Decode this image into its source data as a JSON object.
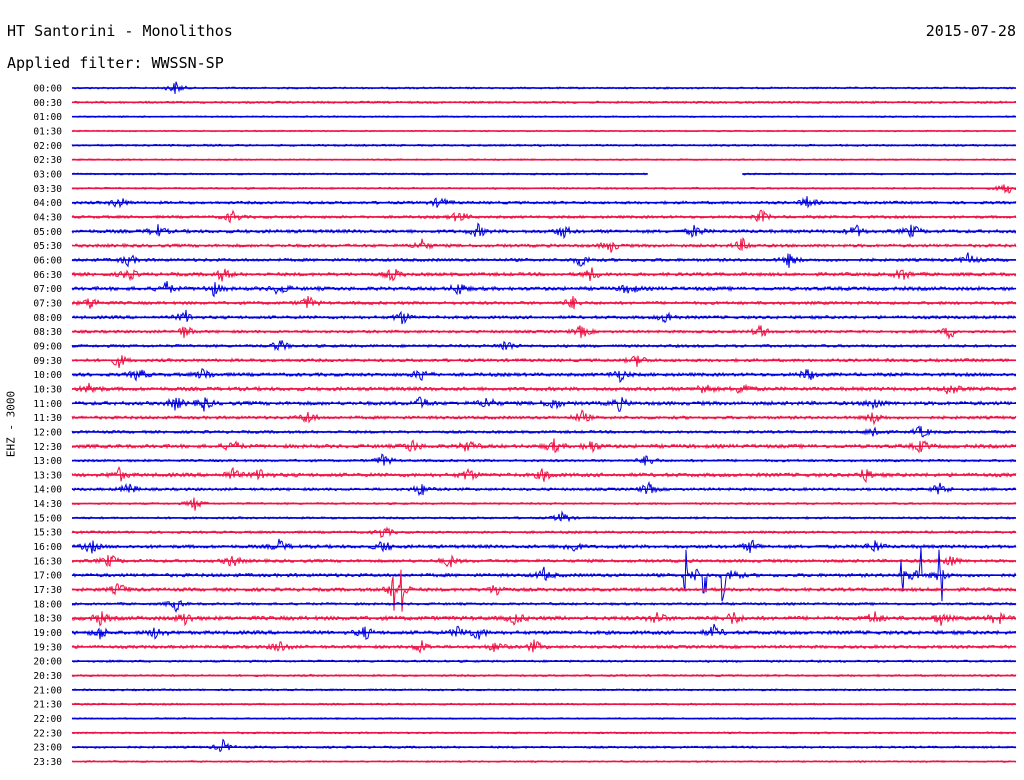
{
  "header": {
    "station": "HT Santorini - Monolithos",
    "filter": "Applied filter: WWSSN-SP",
    "date": "2015-07-28",
    "channel": "EHZ - 3000"
  },
  "colors": {
    "odd_trace": "#0000dd",
    "even_trace": "#ee1144"
  },
  "chart_data": {
    "type": "seismogram-helicorder",
    "title": "HT Santorini - Monolithos",
    "subtitle": "Applied filter: WWSSN-SP",
    "date": "2015-07-28",
    "ylabel": "EHZ - 3000",
    "row_minutes": 30,
    "rows": [
      {
        "time": "00:00",
        "color": "#0000dd",
        "activity": 0.1,
        "events": [
          0.11
        ]
      },
      {
        "time": "00:30",
        "color": "#ee1144",
        "activity": 0.15,
        "events": []
      },
      {
        "time": "01:00",
        "color": "#0000dd",
        "activity": 0.05,
        "events": []
      },
      {
        "time": "01:30",
        "color": "#ee1144",
        "activity": 0.03,
        "events": []
      },
      {
        "time": "02:00",
        "color": "#0000dd",
        "activity": 0.12,
        "events": []
      },
      {
        "time": "02:30",
        "color": "#ee1144",
        "activity": 0.05,
        "events": []
      },
      {
        "time": "03:00",
        "color": "#0000dd",
        "activity": 0.08,
        "events": [],
        "gap": [
          0.61,
          0.71
        ]
      },
      {
        "time": "03:30",
        "color": "#ee1144",
        "activity": 0.1,
        "events": [
          0.99
        ]
      },
      {
        "time": "04:00",
        "color": "#0000dd",
        "activity": 0.25,
        "events": [
          0.05,
          0.39,
          0.78
        ]
      },
      {
        "time": "04:30",
        "color": "#ee1144",
        "activity": 0.25,
        "events": [
          0.17,
          0.41,
          0.73
        ]
      },
      {
        "time": "05:00",
        "color": "#0000dd",
        "activity": 0.35,
        "events": [
          0.09,
          0.43,
          0.52,
          0.66,
          0.83,
          0.89
        ]
      },
      {
        "time": "05:30",
        "color": "#ee1144",
        "activity": 0.3,
        "events": [
          0.37,
          0.57,
          0.71
        ]
      },
      {
        "time": "06:00",
        "color": "#0000dd",
        "activity": 0.3,
        "events": [
          0.06,
          0.54,
          0.76,
          0.95
        ]
      },
      {
        "time": "06:30",
        "color": "#ee1144",
        "activity": 0.35,
        "events": [
          0.06,
          0.16,
          0.34,
          0.55,
          0.88
        ]
      },
      {
        "time": "07:00",
        "color": "#0000dd",
        "activity": 0.4,
        "events": [
          0.1,
          0.15,
          0.22,
          0.41,
          0.59
        ]
      },
      {
        "time": "07:30",
        "color": "#ee1144",
        "activity": 0.3,
        "events": [
          0.02,
          0.25,
          0.53
        ]
      },
      {
        "time": "08:00",
        "color": "#0000dd",
        "activity": 0.3,
        "events": [
          0.12,
          0.35,
          0.63
        ]
      },
      {
        "time": "08:30",
        "color": "#ee1144",
        "activity": 0.25,
        "events": [
          0.12,
          0.54,
          0.73,
          0.93
        ]
      },
      {
        "time": "09:00",
        "color": "#0000dd",
        "activity": 0.25,
        "events": [
          0.22,
          0.46
        ]
      },
      {
        "time": "09:30",
        "color": "#ee1144",
        "activity": 0.3,
        "events": [
          0.05,
          0.6
        ]
      },
      {
        "time": "10:00",
        "color": "#0000dd",
        "activity": 0.35,
        "events": [
          0.07,
          0.14,
          0.37,
          0.58,
          0.78
        ]
      },
      {
        "time": "10:30",
        "color": "#ee1144",
        "activity": 0.4,
        "events": [
          0.02,
          0.67,
          0.71,
          0.93
        ]
      },
      {
        "time": "11:00",
        "color": "#0000dd",
        "activity": 0.4,
        "events": [
          0.11,
          0.14,
          0.37,
          0.44,
          0.51,
          0.58,
          0.85
        ]
      },
      {
        "time": "11:30",
        "color": "#ee1144",
        "activity": 0.3,
        "events": [
          0.25,
          0.54,
          0.85
        ]
      },
      {
        "time": "12:00",
        "color": "#0000dd",
        "activity": 0.25,
        "events": [
          0.85,
          0.9
        ]
      },
      {
        "time": "12:30",
        "color": "#ee1144",
        "activity": 0.4,
        "events": [
          0.17,
          0.36,
          0.42,
          0.51,
          0.55,
          0.9
        ]
      },
      {
        "time": "13:00",
        "color": "#0000dd",
        "activity": 0.2,
        "events": [
          0.33,
          0.61
        ]
      },
      {
        "time": "13:30",
        "color": "#ee1144",
        "activity": 0.4,
        "events": [
          0.05,
          0.17,
          0.2,
          0.42,
          0.5,
          0.84
        ]
      },
      {
        "time": "14:00",
        "color": "#0000dd",
        "activity": 0.25,
        "events": [
          0.06,
          0.37,
          0.61,
          0.92
        ]
      },
      {
        "time": "14:30",
        "color": "#ee1144",
        "activity": 0.12,
        "events": [
          0.13
        ]
      },
      {
        "time": "15:00",
        "color": "#0000dd",
        "activity": 0.15,
        "events": [
          0.52
        ]
      },
      {
        "time": "15:30",
        "color": "#ee1144",
        "activity": 0.2,
        "events": [
          0.33
        ]
      },
      {
        "time": "16:00",
        "color": "#0000dd",
        "activity": 0.35,
        "events": [
          0.02,
          0.22,
          0.33,
          0.53,
          0.72,
          0.85
        ]
      },
      {
        "time": "16:30",
        "color": "#ee1144",
        "activity": 0.3,
        "events": [
          0.04,
          0.17,
          0.4,
          0.93
        ]
      },
      {
        "time": "17:00",
        "color": "#0000dd",
        "activity": 0.35,
        "events": [
          0.5,
          0.66,
          0.7,
          0.89,
          0.92
        ],
        "spikes": [
          0.65,
          0.67,
          0.69,
          0.88,
          0.9,
          0.92
        ]
      },
      {
        "time": "17:30",
        "color": "#ee1144",
        "activity": 0.35,
        "events": [
          0.05,
          0.34,
          0.35,
          0.45
        ],
        "spikes": [
          0.34,
          0.35
        ]
      },
      {
        "time": "18:00",
        "color": "#0000dd",
        "activity": 0.2,
        "events": [
          0.11
        ]
      },
      {
        "time": "18:30",
        "color": "#ee1144",
        "activity": 0.45,
        "events": [
          0.03,
          0.12,
          0.47,
          0.62,
          0.7,
          0.85,
          0.92,
          0.98
        ]
      },
      {
        "time": "19:00",
        "color": "#0000dd",
        "activity": 0.4,
        "events": [
          0.03,
          0.09,
          0.31,
          0.41,
          0.43,
          0.68
        ]
      },
      {
        "time": "19:30",
        "color": "#ee1144",
        "activity": 0.3,
        "events": [
          0.22,
          0.37,
          0.45,
          0.49
        ]
      },
      {
        "time": "20:00",
        "color": "#0000dd",
        "activity": 0.15,
        "events": []
      },
      {
        "time": "20:30",
        "color": "#ee1144",
        "activity": 0.12,
        "events": []
      },
      {
        "time": "21:00",
        "color": "#0000dd",
        "activity": 0.1,
        "events": []
      },
      {
        "time": "21:30",
        "color": "#ee1144",
        "activity": 0.1,
        "events": []
      },
      {
        "time": "22:00",
        "color": "#0000dd",
        "activity": 0.05,
        "events": []
      },
      {
        "time": "22:30",
        "color": "#ee1144",
        "activity": 0.1,
        "events": []
      },
      {
        "time": "23:00",
        "color": "#0000dd",
        "activity": 0.15,
        "events": [
          0.16
        ]
      },
      {
        "time": "23:30",
        "color": "#ee1144",
        "activity": 0.05,
        "events": []
      }
    ]
  }
}
